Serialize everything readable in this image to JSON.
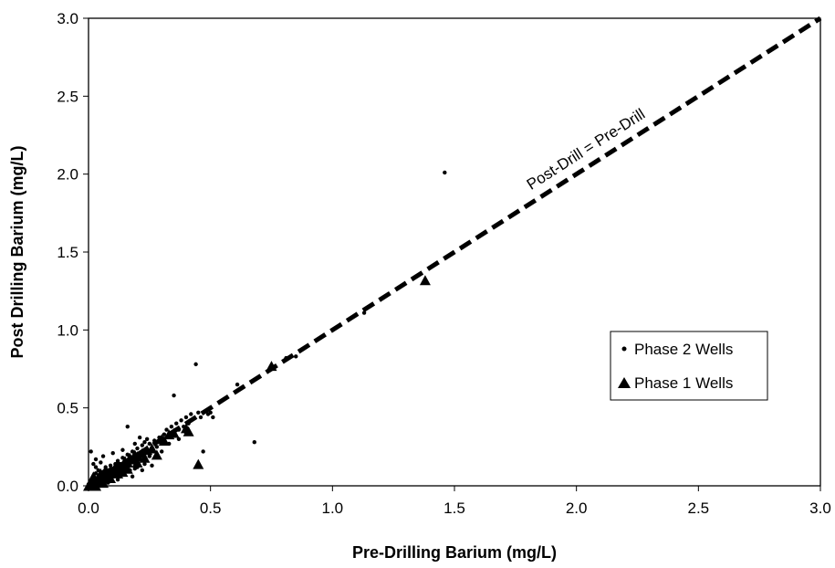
{
  "chart_data": {
    "type": "scatter",
    "title": "",
    "xlabel": "Pre-Drilling Barium (mg/L)",
    "ylabel": "Post Drilling Barium (mg/L)",
    "xlim": [
      0,
      3
    ],
    "ylim": [
      0,
      3
    ],
    "x_ticks": [
      "0.0",
      "0.5",
      "1.0",
      "1.5",
      "2.0",
      "2.5",
      "3.0"
    ],
    "y_ticks": [
      "0.0",
      "0.5",
      "1.0",
      "1.5",
      "2.0",
      "2.5",
      "3.0"
    ],
    "grid": false,
    "legend_position": "right-middle",
    "reference_line": {
      "label": "Post-Drill = Pre-Drill",
      "x": [
        0,
        3
      ],
      "y": [
        0,
        3
      ],
      "style": "dashed"
    },
    "series": [
      {
        "name": "Phase 2 Wells",
        "marker": "dot",
        "points": [
          [
            0.01,
            0.22
          ],
          [
            0.02,
            0.05
          ],
          [
            0.02,
            0.02
          ],
          [
            0.03,
            0.08
          ],
          [
            0.03,
            0.12
          ],
          [
            0.04,
            0.03
          ],
          [
            0.04,
            0.1
          ],
          [
            0.05,
            0.06
          ],
          [
            0.05,
            0.15
          ],
          [
            0.06,
            0.04
          ],
          [
            0.06,
            0.09
          ],
          [
            0.07,
            0.12
          ],
          [
            0.07,
            0.07
          ],
          [
            0.08,
            0.05
          ],
          [
            0.08,
            0.1
          ],
          [
            0.09,
            0.13
          ],
          [
            0.09,
            0.08
          ],
          [
            0.1,
            0.11
          ],
          [
            0.1,
            0.06
          ],
          [
            0.11,
            0.14
          ],
          [
            0.11,
            0.09
          ],
          [
            0.12,
            0.12
          ],
          [
            0.12,
            0.16
          ],
          [
            0.13,
            0.1
          ],
          [
            0.13,
            0.14
          ],
          [
            0.14,
            0.18
          ],
          [
            0.14,
            0.08
          ],
          [
            0.15,
            0.15
          ],
          [
            0.15,
            0.12
          ],
          [
            0.16,
            0.2
          ],
          [
            0.16,
            0.38
          ],
          [
            0.17,
            0.16
          ],
          [
            0.17,
            0.13
          ],
          [
            0.18,
            0.22
          ],
          [
            0.18,
            0.17
          ],
          [
            0.19,
            0.19
          ],
          [
            0.19,
            0.11
          ],
          [
            0.2,
            0.24
          ],
          [
            0.2,
            0.2
          ],
          [
            0.21,
            0.18
          ],
          [
            0.22,
            0.26
          ],
          [
            0.22,
            0.21
          ],
          [
            0.23,
            0.28
          ],
          [
            0.23,
            0.14
          ],
          [
            0.24,
            0.22
          ],
          [
            0.24,
            0.3
          ],
          [
            0.25,
            0.27
          ],
          [
            0.26,
            0.24
          ],
          [
            0.27,
            0.29
          ],
          [
            0.28,
            0.2
          ],
          [
            0.29,
            0.31
          ],
          [
            0.3,
            0.28
          ],
          [
            0.31,
            0.33
          ],
          [
            0.32,
            0.36
          ],
          [
            0.33,
            0.32
          ],
          [
            0.34,
            0.38
          ],
          [
            0.35,
            0.35
          ],
          [
            0.35,
            0.58
          ],
          [
            0.36,
            0.4
          ],
          [
            0.37,
            0.36
          ],
          [
            0.38,
            0.42
          ],
          [
            0.39,
            0.38
          ],
          [
            0.4,
            0.44
          ],
          [
            0.41,
            0.4
          ],
          [
            0.42,
            0.46
          ],
          [
            0.43,
            0.43
          ],
          [
            0.44,
            0.78
          ],
          [
            0.45,
            0.47
          ],
          [
            0.46,
            0.44
          ],
          [
            0.47,
            0.22
          ],
          [
            0.48,
            0.48
          ],
          [
            0.49,
            0.46
          ],
          [
            0.5,
            0.47
          ],
          [
            0.51,
            0.44
          ],
          [
            0.61,
            0.65
          ],
          [
            0.68,
            0.28
          ],
          [
            0.81,
            0.82
          ],
          [
            0.85,
            0.83
          ],
          [
            1.13,
            1.11
          ],
          [
            1.46,
            2.01
          ],
          [
            0.05,
            0.01
          ],
          [
            0.08,
            0.02
          ],
          [
            0.12,
            0.04
          ],
          [
            0.18,
            0.06
          ],
          [
            0.22,
            0.1
          ],
          [
            0.26,
            0.13
          ],
          [
            0.02,
            0.14
          ],
          [
            0.03,
            0.17
          ],
          [
            0.06,
            0.19
          ],
          [
            0.1,
            0.21
          ],
          [
            0.14,
            0.23
          ],
          [
            0.19,
            0.27
          ],
          [
            0.21,
            0.31
          ],
          [
            0.25,
            0.19
          ],
          [
            0.28,
            0.25
          ],
          [
            0.3,
            0.22
          ],
          [
            0.33,
            0.27
          ],
          [
            0.37,
            0.3
          ],
          [
            0.4,
            0.34
          ],
          [
            0.0,
            0.01
          ],
          [
            0.01,
            0.03
          ],
          [
            0.03,
            0.01
          ],
          [
            0.04,
            0.06
          ],
          [
            0.07,
            0.03
          ],
          [
            0.09,
            0.05
          ],
          [
            0.11,
            0.07
          ],
          [
            0.13,
            0.06
          ],
          [
            0.15,
            0.09
          ],
          [
            0.17,
            0.1
          ],
          [
            0.2,
            0.12
          ]
        ]
      },
      {
        "name": "Phase 1 Wells",
        "marker": "triangle",
        "points": [
          [
            0.0,
            0.0
          ],
          [
            0.01,
            0.01
          ],
          [
            0.02,
            0.02
          ],
          [
            0.03,
            0.03
          ],
          [
            0.04,
            0.05
          ],
          [
            0.05,
            0.04
          ],
          [
            0.06,
            0.07
          ],
          [
            0.07,
            0.06
          ],
          [
            0.08,
            0.08
          ],
          [
            0.09,
            0.1
          ],
          [
            0.1,
            0.09
          ],
          [
            0.11,
            0.12
          ],
          [
            0.12,
            0.14
          ],
          [
            0.13,
            0.11
          ],
          [
            0.14,
            0.13
          ],
          [
            0.15,
            0.16
          ],
          [
            0.16,
            0.15
          ],
          [
            0.17,
            0.18
          ],
          [
            0.18,
            0.17
          ],
          [
            0.19,
            0.2
          ],
          [
            0.2,
            0.19
          ],
          [
            0.22,
            0.21
          ],
          [
            0.24,
            0.23
          ],
          [
            0.26,
            0.24
          ],
          [
            0.28,
            0.2
          ],
          [
            0.3,
            0.3
          ],
          [
            0.31,
            0.29
          ],
          [
            0.33,
            0.33
          ],
          [
            0.35,
            0.34
          ],
          [
            0.4,
            0.37
          ],
          [
            0.41,
            0.35
          ],
          [
            0.45,
            0.14
          ],
          [
            0.75,
            0.77
          ],
          [
            1.38,
            1.32
          ],
          [
            0.02,
            0.06
          ],
          [
            0.05,
            0.08
          ],
          [
            0.09,
            0.05
          ],
          [
            0.12,
            0.08
          ],
          [
            0.16,
            0.11
          ],
          [
            0.2,
            0.15
          ],
          [
            0.23,
            0.18
          ],
          [
            0.14,
            0.09
          ],
          [
            0.07,
            0.1
          ],
          [
            0.03,
            0.0
          ],
          [
            0.06,
            0.02
          ]
        ]
      }
    ]
  }
}
